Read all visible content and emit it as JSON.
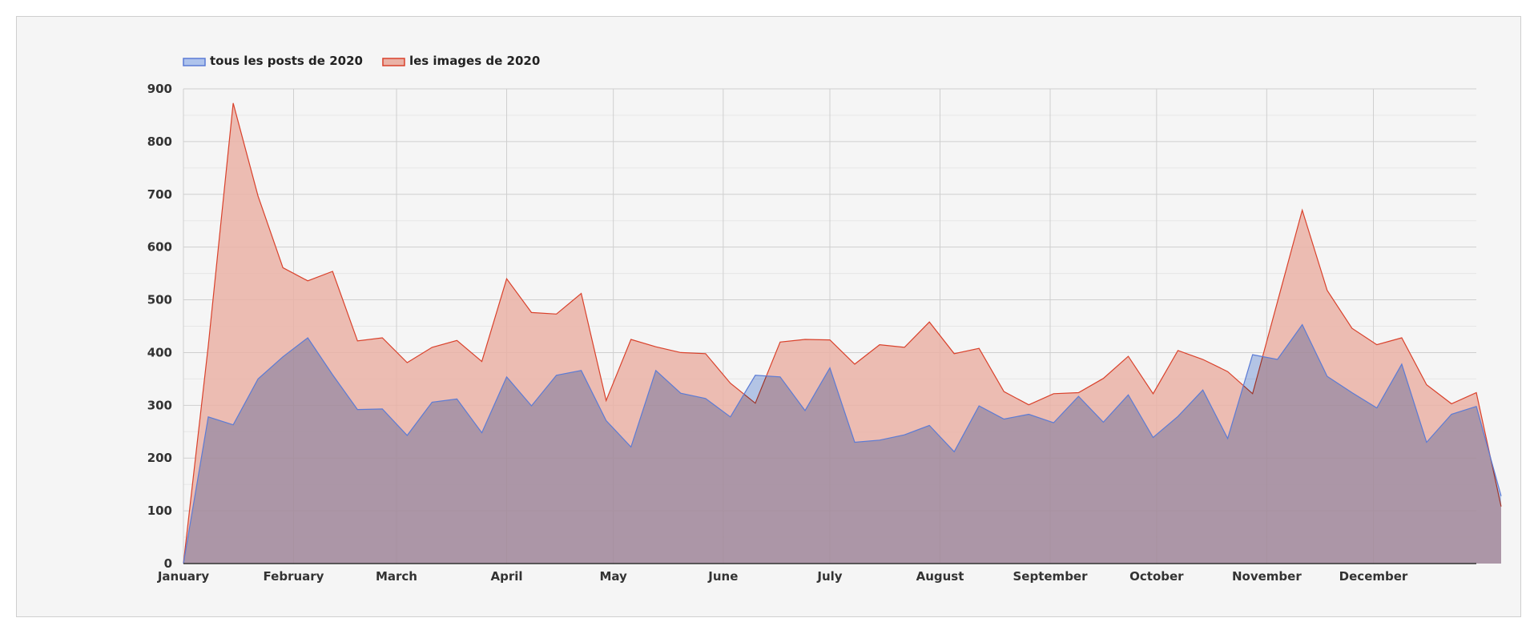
{
  "chart_data": {
    "type": "area",
    "title": "",
    "xlabel": "",
    "ylabel": "",
    "ylim": [
      0,
      900
    ],
    "yticks": [
      0,
      100,
      200,
      300,
      400,
      500,
      600,
      700,
      800,
      900
    ],
    "xlim": [
      0,
      52
    ],
    "month_ticks": [
      {
        "label": "January",
        "week": 0
      },
      {
        "label": "February",
        "week": 4.43
      },
      {
        "label": "March",
        "week": 8.57
      },
      {
        "label": "April",
        "week": 13
      },
      {
        "label": "May",
        "week": 17.29
      },
      {
        "label": "June",
        "week": 21.71
      },
      {
        "label": "July",
        "week": 26
      },
      {
        "label": "August",
        "week": 30.43
      },
      {
        "label": "September",
        "week": 34.86
      },
      {
        "label": "October",
        "week": 39.14
      },
      {
        "label": "November",
        "week": 43.57
      },
      {
        "label": "December",
        "week": 47.86
      }
    ],
    "grid": true,
    "legend_position": "top-left",
    "series": [
      {
        "name": "tous les posts de 2020",
        "color": "#5b7bd5",
        "fill": "#aec3ec",
        "values": [
          0,
          278,
          263,
          350,
          392,
          428,
          358,
          292,
          293,
          243,
          306,
          312,
          248,
          354,
          299,
          357,
          366,
          271,
          221,
          366,
          323,
          313,
          278,
          357,
          354,
          290,
          371,
          230,
          234,
          244,
          262,
          212,
          299,
          274,
          283,
          267,
          317,
          268,
          320,
          239,
          279,
          329,
          237,
          396,
          387,
          453,
          355,
          324,
          295,
          378,
          230,
          283,
          298,
          128
        ]
      },
      {
        "name": "les images de 2020",
        "color": "#d9412b",
        "fill": "#eab2a6",
        "values": [
          0,
          413,
          873,
          697,
          561,
          536,
          554,
          422,
          428,
          381,
          410,
          423,
          383,
          540,
          476,
          473,
          512,
          309,
          425,
          411,
          400,
          398,
          342,
          304,
          420,
          425,
          424,
          378,
          415,
          410,
          458,
          398,
          408,
          326,
          301,
          322,
          324,
          351,
          393,
          322,
          404,
          387,
          364,
          322,
          496,
          670,
          518,
          446,
          415,
          428,
          339,
          303,
          324,
          108
        ]
      }
    ]
  }
}
